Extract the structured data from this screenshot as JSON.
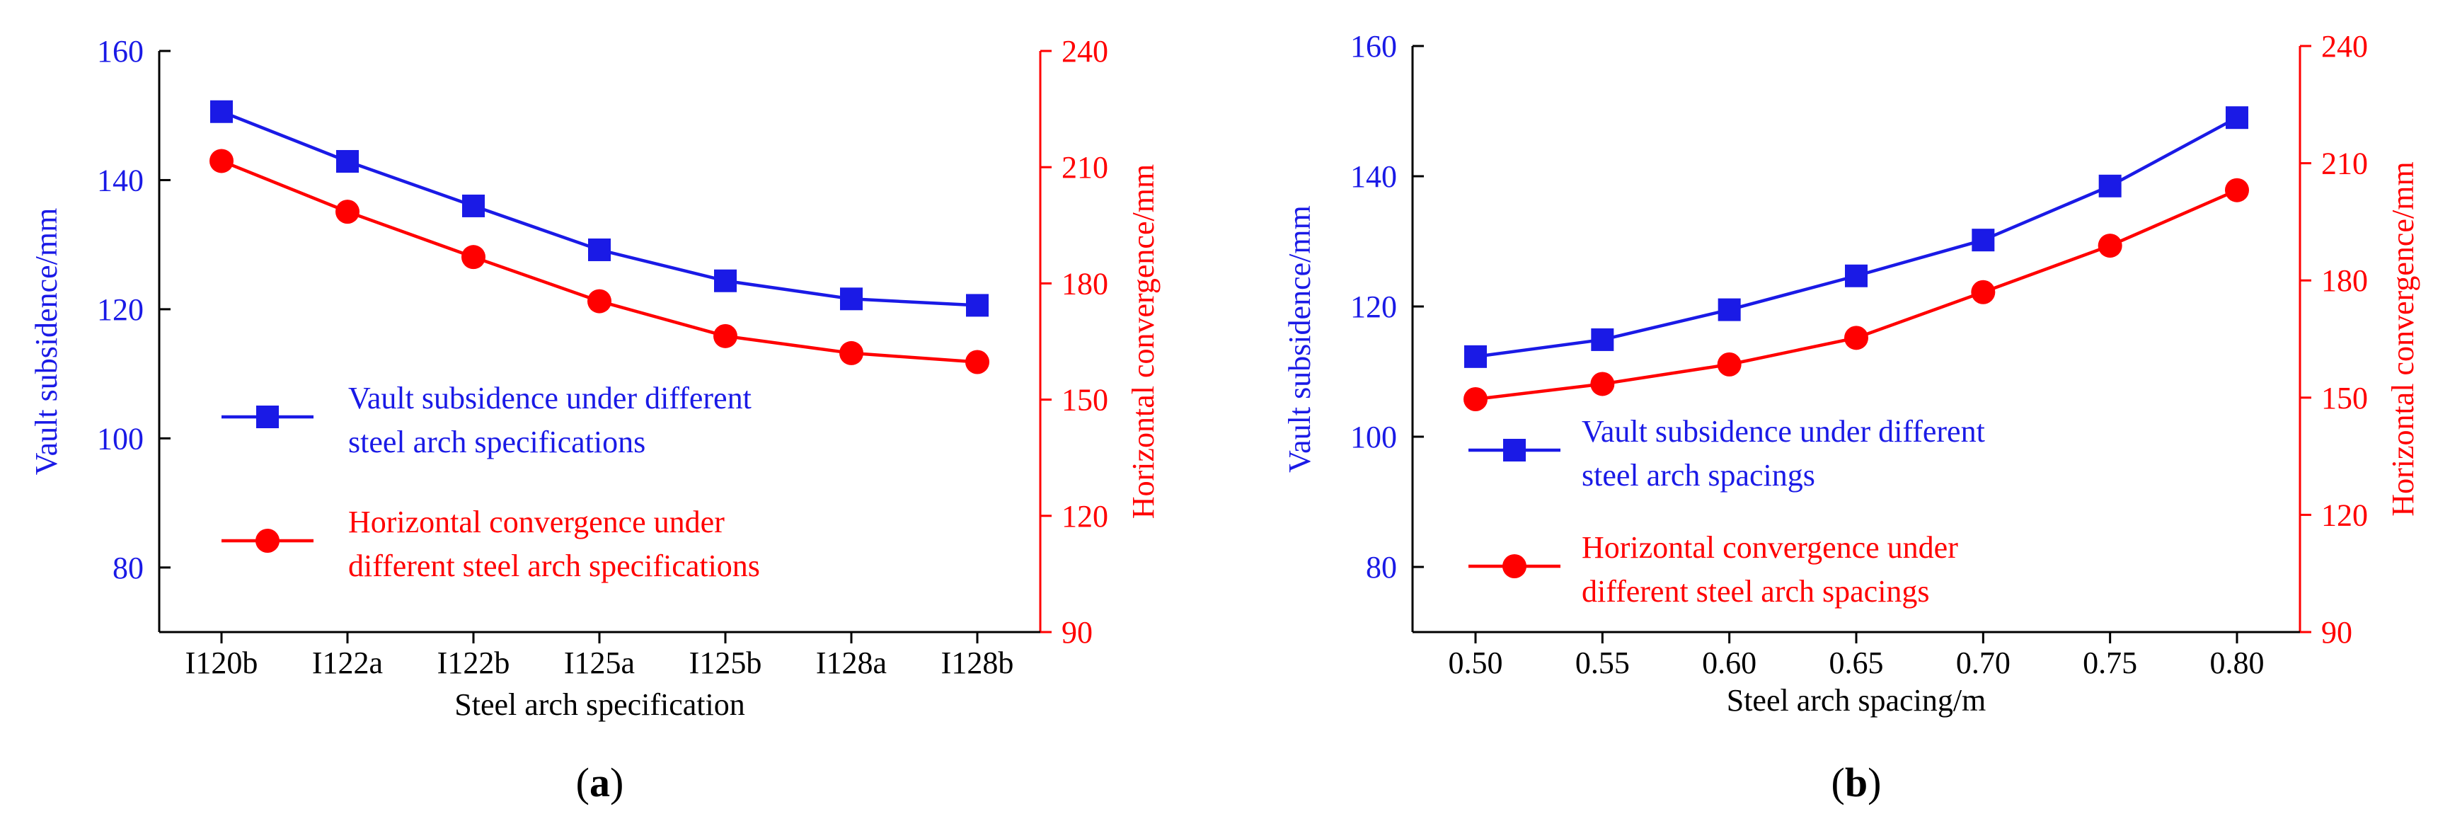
{
  "colors": {
    "blue": "#1a1ae6",
    "red": "#ff0000",
    "axis": "#000000"
  },
  "chart_data": [
    {
      "panel_label": "a",
      "type": "line",
      "title": "",
      "xlabel": "Steel arch specification",
      "ylabel_left": "Vault subsidence/mm",
      "ylabel_right": "Horizontal convergence/mm",
      "categories": [
        "I120b",
        "I122a",
        "I122b",
        "I125a",
        "I125b",
        "I128a",
        "I128b"
      ],
      "ylim_left": [
        70,
        160
      ],
      "yticks_left": [
        80,
        100,
        120,
        140,
        160
      ],
      "ylim_right": [
        90,
        240
      ],
      "yticks_right": [
        90,
        120,
        150,
        180,
        210,
        240
      ],
      "series": [
        {
          "name": "Vault subsidence under different steel arch specifications",
          "legend_lines": [
            "Vault subsidence under different",
            "steel arch specifications"
          ],
          "axis": "left",
          "marker": "square",
          "color": "#1a1ae6",
          "values": [
            150.6,
            142.9,
            136.0,
            129.2,
            124.4,
            121.6,
            120.6
          ]
        },
        {
          "name": "Horizontal convergence under different steel arch specifications",
          "legend_lines": [
            "Horizontal convergence under",
            "different steel arch specifications"
          ],
          "axis": "right",
          "marker": "circle",
          "color": "#ff0000",
          "values": [
            211.6,
            198.5,
            186.8,
            175.4,
            166.4,
            162.0,
            159.7
          ]
        }
      ],
      "legend_position": "lower-left"
    },
    {
      "panel_label": "b",
      "type": "line",
      "title": "",
      "xlabel": "Steel arch spacing/m",
      "ylabel_left": "Vault subsidence/mm",
      "ylabel_right": "Horizontal convergence/mm",
      "categories": [
        "0.50",
        "0.55",
        "0.60",
        "0.65",
        "0.70",
        "0.75",
        "0.80"
      ],
      "ylim_left": [
        70,
        160
      ],
      "yticks_left": [
        80,
        100,
        120,
        140,
        160
      ],
      "ylim_right": [
        90,
        240
      ],
      "yticks_right": [
        90,
        120,
        150,
        180,
        210,
        240
      ],
      "series": [
        {
          "name": "Vault subsidence under different steel arch spacings",
          "legend_lines": [
            "Vault subsidence under different",
            "steel arch spacings"
          ],
          "axis": "left",
          "marker": "square",
          "color": "#1a1ae6",
          "values": [
            112.3,
            114.9,
            119.5,
            124.7,
            130.2,
            138.5,
            149.0
          ]
        },
        {
          "name": "Horizontal convergence under different steel arch spacings",
          "legend_lines": [
            "Horizontal convergence under",
            "different steel arch spacings"
          ],
          "axis": "right",
          "marker": "circle",
          "color": "#ff0000",
          "values": [
            149.6,
            153.5,
            158.5,
            165.3,
            177.0,
            188.9,
            203.1
          ]
        }
      ],
      "legend_position": "lower-left"
    }
  ]
}
